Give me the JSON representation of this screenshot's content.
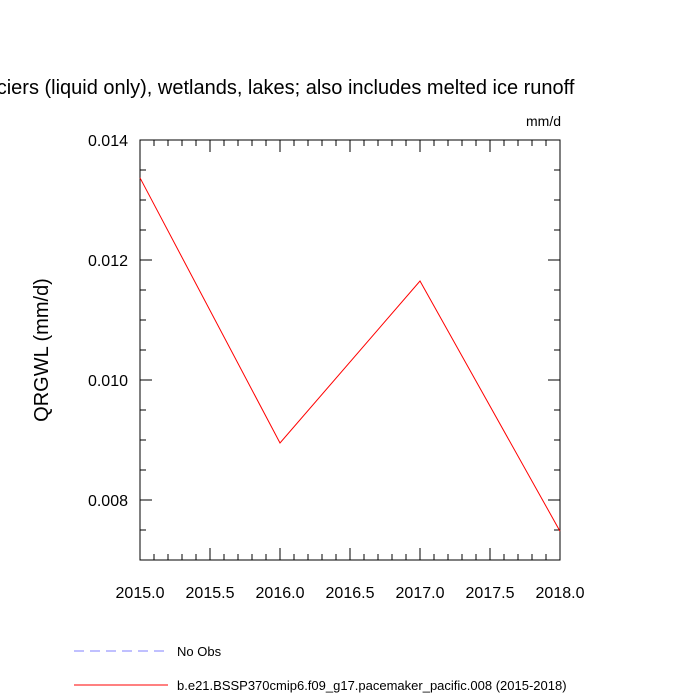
{
  "chart_data": {
    "type": "line",
    "title": "aciers (liquid only), wetlands, lakes; also includes melted ice runoff",
    "units_label": "mm/d",
    "ylabel": "QRGWL  (mm/d)",
    "xlabel": "",
    "xlim": [
      2015.0,
      2018.0
    ],
    "ylim": [
      0.007,
      0.014
    ],
    "x_ticks": [
      2015.0,
      2015.5,
      2016.0,
      2016.5,
      2017.0,
      2017.5,
      2018.0
    ],
    "x_tick_labels": [
      "2015.0",
      "2015.5",
      "2016.0",
      "2016.5",
      "2017.0",
      "2017.5",
      "2018.0"
    ],
    "y_ticks": [
      0.008,
      0.01,
      0.012,
      0.014
    ],
    "y_tick_labels": [
      "0.008",
      "0.010",
      "0.012",
      "0.014"
    ],
    "grid": false,
    "legend_position": "bottom-left",
    "series": [
      {
        "name": "No Obs",
        "color": "#8080ff",
        "style": "dashed",
        "x": [],
        "y": []
      },
      {
        "name": "b.e21.BSSP370cmip6.f09_g17.pacemaker_pacific.008 (2015-2018)",
        "color": "#ff0000",
        "style": "solid",
        "x": [
          2015.0,
          2016.0,
          2017.0,
          2018.0
        ],
        "y": [
          0.01337,
          0.00895,
          0.01165,
          0.00748
        ]
      }
    ]
  }
}
